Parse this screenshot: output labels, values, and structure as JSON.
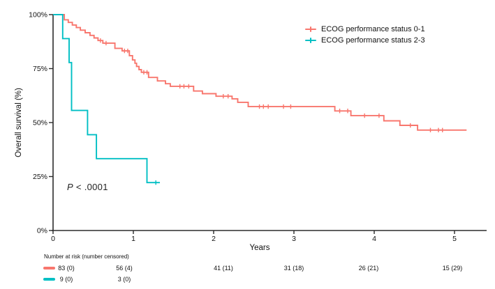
{
  "chart": {
    "y_title": "Overall survival (%)",
    "x_title": "Years",
    "p_value": {
      "symbol": "P",
      "rest": " < .0001"
    }
  },
  "legend": {
    "items": [
      {
        "label": "ECOG performance status 0-1",
        "color": "#F8766D"
      },
      {
        "label": "ECOG performance status 2-3",
        "color": "#00BFC4"
      }
    ],
    "position": "top-right"
  },
  "chart_data": {
    "type": "line",
    "subtype": "kaplan-meier-step",
    "title": "",
    "xlabel": "Years",
    "ylabel": "Overall survival (%)",
    "xlim": [
      0,
      5.4
    ],
    "ylim": [
      0,
      100
    ],
    "grid": false,
    "x_ticks": [
      {
        "v": 0,
        "label": "0"
      },
      {
        "v": 1,
        "label": "1"
      },
      {
        "v": 2,
        "label": "2"
      },
      {
        "v": 3,
        "label": "3"
      },
      {
        "v": 4,
        "label": "4"
      },
      {
        "v": 5,
        "label": "5"
      }
    ],
    "y_ticks": [
      {
        "v": 0,
        "label": "0%"
      },
      {
        "v": 25,
        "label": "25%"
      },
      {
        "v": 50,
        "label": "50%"
      },
      {
        "v": 75,
        "label": "75%"
      },
      {
        "v": 100,
        "label": "100%"
      }
    ],
    "series": [
      {
        "name": "ECOG performance status 0-1",
        "color": "#F8766D",
        "start": [
          0,
          100
        ],
        "end_t": 5.15,
        "steps": [
          [
            0.14,
            97.6
          ],
          [
            0.19,
            96.4
          ],
          [
            0.24,
            95.2
          ],
          [
            0.29,
            94.0
          ],
          [
            0.34,
            92.8
          ],
          [
            0.4,
            91.6
          ],
          [
            0.46,
            90.4
          ],
          [
            0.51,
            89.2
          ],
          [
            0.56,
            88.0
          ],
          [
            0.62,
            86.8
          ],
          [
            0.77,
            84.4
          ],
          [
            0.86,
            83.2
          ],
          [
            0.95,
            81.0
          ],
          [
            0.99,
            79.0
          ],
          [
            1.02,
            77.5
          ],
          [
            1.04,
            76.0
          ],
          [
            1.07,
            74.5
          ],
          [
            1.1,
            73.3
          ],
          [
            1.19,
            70.9
          ],
          [
            1.3,
            69.3
          ],
          [
            1.4,
            68.0
          ],
          [
            1.46,
            66.8
          ],
          [
            1.75,
            64.6
          ],
          [
            1.86,
            63.4
          ],
          [
            2.03,
            62.2
          ],
          [
            2.23,
            61.0
          ],
          [
            2.3,
            59.4
          ],
          [
            2.43,
            57.4
          ],
          [
            3.51,
            55.4
          ],
          [
            3.71,
            53.2
          ],
          [
            4.12,
            50.8
          ],
          [
            4.32,
            48.7
          ],
          [
            4.54,
            46.5
          ]
        ],
        "censors": [
          [
            0.59,
            88.0
          ],
          [
            0.66,
            86.8
          ],
          [
            0.89,
            83.2
          ],
          [
            0.93,
            83.2
          ],
          [
            1.13,
            73.3
          ],
          [
            1.17,
            73.3
          ],
          [
            1.58,
            66.8
          ],
          [
            1.63,
            66.8
          ],
          [
            1.69,
            66.8
          ],
          [
            2.12,
            62.2
          ],
          [
            2.18,
            62.2
          ],
          [
            2.57,
            57.4
          ],
          [
            2.62,
            57.4
          ],
          [
            2.68,
            57.4
          ],
          [
            2.87,
            57.4
          ],
          [
            2.96,
            57.4
          ],
          [
            3.57,
            55.4
          ],
          [
            3.67,
            55.4
          ],
          [
            3.88,
            53.2
          ],
          [
            4.06,
            53.2
          ],
          [
            4.45,
            48.7
          ],
          [
            4.7,
            46.5
          ],
          [
            4.8,
            46.5
          ],
          [
            4.85,
            46.5
          ]
        ]
      },
      {
        "name": "ECOG performance status 2-3",
        "color": "#00BFC4",
        "start": [
          0,
          100
        ],
        "end_t": 1.33,
        "steps": [
          [
            0.12,
            88.9
          ],
          [
            0.2,
            77.8
          ],
          [
            0.23,
            55.6
          ],
          [
            0.43,
            44.4
          ],
          [
            0.54,
            33.3
          ],
          [
            1.17,
            22.2
          ]
        ],
        "censors": [
          [
            1.28,
            22.2
          ]
        ]
      }
    ],
    "annotations": [
      {
        "text": "P < .0001",
        "x": 0.2,
        "y": 20
      }
    ]
  },
  "at_risk": {
    "header": "Number at risk (number censored)",
    "times": [
      0,
      1,
      2,
      3,
      4,
      5
    ],
    "rows": [
      {
        "group": "ECOG performance status 0-1",
        "color": "#F8766D",
        "values": [
          "83 (0)",
          "56 (4)",
          "41 (11)",
          "31 (18)",
          "26 (21)",
          "15 (29)"
        ]
      },
      {
        "group": "ECOG performance status 2-3",
        "color": "#00BFC4",
        "values": [
          "9 (0)",
          "3 (0)"
        ]
      }
    ]
  }
}
